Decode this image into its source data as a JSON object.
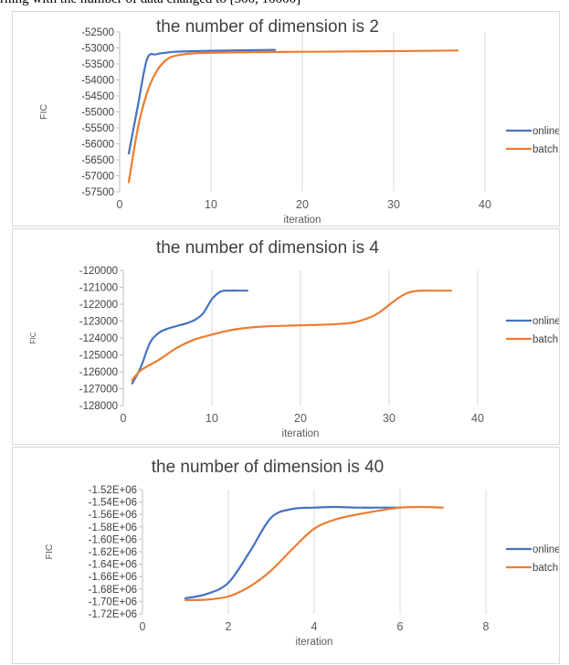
{
  "caption": "rning with the number of data changed to [500, 10000]",
  "chart_data": [
    {
      "type": "line",
      "title": "the number of dimension is 2",
      "xlabel": "iteration",
      "ylabel": "FIC",
      "xlim": [
        0,
        40
      ],
      "xticks": [
        0,
        10,
        20,
        30,
        40
      ],
      "ylim": [
        -57500,
        -52500
      ],
      "yticks": [
        -52500,
        -53000,
        -53500,
        -54000,
        -54500,
        -55000,
        -55500,
        -56000,
        -56500,
        -57000,
        -57500
      ],
      "ytick_labels": [
        "-52500",
        "-53000",
        "-53500",
        "-54000",
        "-54500",
        "-55000",
        "-55500",
        "-56000",
        "-56500",
        "-57000",
        "-57500"
      ],
      "grid": "vertical",
      "legend": "right",
      "series": [
        {
          "name": "online",
          "color": "#4472c4",
          "x": [
            1,
            2,
            3,
            4,
            5,
            6,
            8,
            10,
            12,
            14,
            17
          ],
          "y": [
            -56300,
            -54800,
            -53350,
            -53200,
            -53150,
            -53120,
            -53100,
            -53090,
            -53080,
            -53070,
            -53060
          ]
        },
        {
          "name": "batch",
          "color": "#ed7d31",
          "x": [
            1,
            2,
            3,
            4,
            5,
            6,
            8,
            10,
            15,
            20,
            25,
            30,
            37
          ],
          "y": [
            -57200,
            -55500,
            -54400,
            -53750,
            -53400,
            -53250,
            -53170,
            -53150,
            -53130,
            -53120,
            -53110,
            -53100,
            -53080
          ]
        }
      ]
    },
    {
      "type": "line",
      "title": "the number of dimension is 4",
      "xlabel": "iteration",
      "ylabel": "FIC",
      "xlim": [
        0,
        40
      ],
      "xticks": [
        0,
        10,
        20,
        30,
        40
      ],
      "ylim": [
        -128000,
        -120000
      ],
      "yticks": [
        -120000,
        -121000,
        -122000,
        -123000,
        -124000,
        -125000,
        -126000,
        -127000,
        -128000
      ],
      "ytick_labels": [
        "-120000",
        "-121000",
        "-122000",
        "-123000",
        "-124000",
        "-125000",
        "-126000",
        "-127000",
        "-128000"
      ],
      "grid": "vertical",
      "legend": "right",
      "series": [
        {
          "name": "online",
          "color": "#4472c4",
          "x": [
            1,
            2,
            3,
            4,
            5,
            6,
            7,
            8,
            9,
            10,
            11,
            12,
            13,
            14
          ],
          "y": [
            -126700,
            -125700,
            -124300,
            -123700,
            -123450,
            -123300,
            -123150,
            -122950,
            -122550,
            -121700,
            -121250,
            -121200,
            -121200,
            -121200
          ]
        },
        {
          "name": "batch",
          "color": "#ed7d31",
          "x": [
            1,
            2,
            4,
            6,
            8,
            10,
            12,
            14,
            16,
            18,
            20,
            22,
            24,
            26,
            28,
            29,
            30,
            31,
            32,
            33,
            34,
            35,
            37
          ],
          "y": [
            -126500,
            -125900,
            -125300,
            -124600,
            -124100,
            -123800,
            -123550,
            -123400,
            -123320,
            -123280,
            -123250,
            -123220,
            -123180,
            -123080,
            -122750,
            -122450,
            -122050,
            -121650,
            -121350,
            -121220,
            -121200,
            -121200,
            -121200
          ]
        }
      ]
    },
    {
      "type": "line",
      "title": "the number of dimension is 40",
      "xlabel": "iteration",
      "ylabel": "FIC",
      "xlim": [
        0,
        8
      ],
      "xticks": [
        0,
        2,
        4,
        6,
        8
      ],
      "ylim": [
        -1720000,
        -1520000
      ],
      "yticks": [
        -1520000,
        -1540000,
        -1560000,
        -1580000,
        -1600000,
        -1620000,
        -1640000,
        -1660000,
        -1680000,
        -1700000,
        -1720000
      ],
      "ytick_labels": [
        "-1.52E+06",
        "-1.54E+06",
        "-1.56E+06",
        "-1.58E+06",
        "-1.60E+06",
        "-1.62E+06",
        "-1.64E+06",
        "-1.66E+06",
        "-1.68E+06",
        "-1.70E+06",
        "-1.72E+06"
      ],
      "grid": "vertical",
      "legend": "right",
      "series": [
        {
          "name": "online",
          "color": "#4472c4",
          "x": [
            1,
            1.5,
            2,
            2.5,
            3,
            3.5,
            4,
            4.5,
            5,
            5.5,
            6
          ],
          "y": [
            -1695000,
            -1688000,
            -1670000,
            -1620000,
            -1565000,
            -1551000,
            -1549000,
            -1548000,
            -1549000,
            -1549000,
            -1549000
          ]
        },
        {
          "name": "batch",
          "color": "#ed7d31",
          "x": [
            1,
            1.5,
            2,
            2.5,
            3,
            3.5,
            4,
            4.5,
            5,
            5.5,
            6,
            6.5,
            7
          ],
          "y": [
            -1698000,
            -1697000,
            -1692000,
            -1676000,
            -1650000,
            -1615000,
            -1583000,
            -1568000,
            -1560000,
            -1554000,
            -1549000,
            -1548000,
            -1549000
          ]
        }
      ]
    }
  ]
}
